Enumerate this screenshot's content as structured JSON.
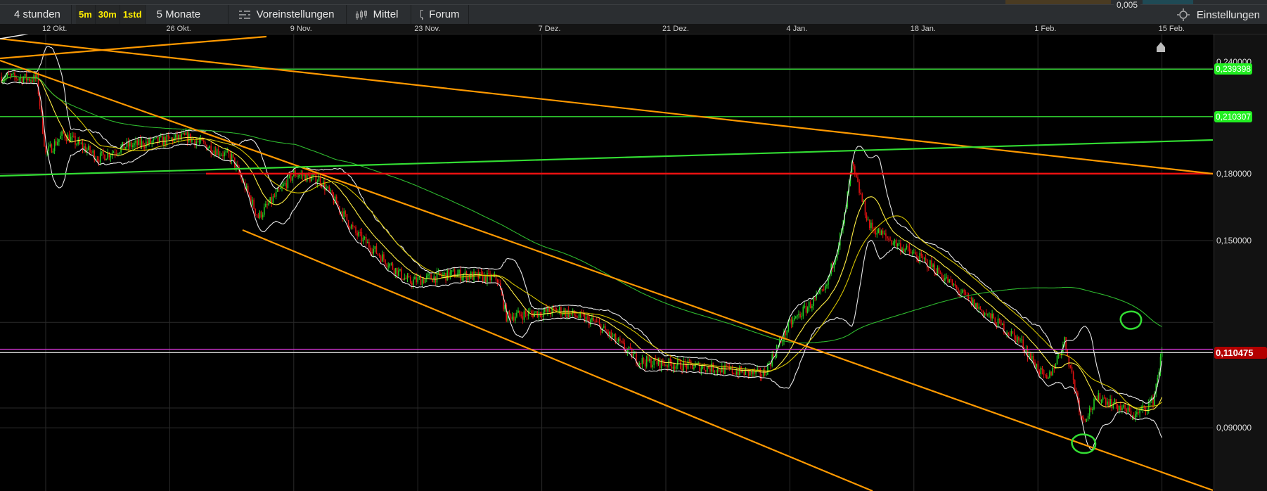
{
  "top_strip": {
    "partial_value": "0,005"
  },
  "toolbar": {
    "interval": "4 stunden",
    "quick_intervals": [
      "5m",
      "30m",
      "1std"
    ],
    "range": "5 Monate",
    "presets_label": "Voreinstellungen",
    "presets_icon": "sliders-icon",
    "indicator_label": "Mittel",
    "indicator_icon": "candlestick-icon",
    "forum_label": "Forum",
    "forum_icon": "speech-bubble-icon",
    "settings_label": "Einstellungen",
    "settings_icon": "gear-icon"
  },
  "chart_data": {
    "type": "candlestick",
    "x_scale": "date",
    "y_scale": "log",
    "x_tick_labels": [
      "12 Okt.",
      "26 Okt.",
      "9 Nov.",
      "23 Nov.",
      "7 Dez.",
      "21 Dez.",
      "4 Jan.",
      "18 Jan.",
      "1 Feb.",
      "15 Feb."
    ],
    "y_tick_labels": [
      "0,240000",
      "0,180000",
      "0,150000",
      "0,090000"
    ],
    "y_ticks": [
      0.24,
      0.18,
      0.15,
      0.09
    ],
    "grid": true,
    "colors": {
      "up": "#22cc22",
      "down": "#dd1111",
      "bands": "#e8e8e8",
      "ma_short": "#d4c200",
      "ma_long": "#2eb82e",
      "trendlines": "#ff9900"
    },
    "price_path": [
      {
        "date": "07.10.",
        "close": 0.2346
      },
      {
        "date": "11.10.",
        "close": 0.233
      },
      {
        "date": "12.10.",
        "close": 0.19
      },
      {
        "date": "14.10.",
        "close": 0.2006
      },
      {
        "date": "18.10.",
        "close": 0.188
      },
      {
        "date": "21.10.",
        "close": 0.194
      },
      {
        "date": "28.10.",
        "close": 0.199
      },
      {
        "date": "02.11.",
        "close": 0.188
      },
      {
        "date": "05.11.",
        "close": 0.16
      },
      {
        "date": "09.11.",
        "close": 0.18
      },
      {
        "date": "12.11.",
        "close": 0.177
      },
      {
        "date": "16.11.",
        "close": 0.153
      },
      {
        "date": "22.11.",
        "close": 0.134
      },
      {
        "date": "27.11.",
        "close": 0.137
      },
      {
        "date": "02.12.",
        "close": 0.135
      },
      {
        "date": "03.12.",
        "close": 0.122
      },
      {
        "date": "09.12.",
        "close": 0.124
      },
      {
        "date": "13.12.",
        "close": 0.12
      },
      {
        "date": "18.12.",
        "close": 0.108
      },
      {
        "date": "26.12.",
        "close": 0.106
      },
      {
        "date": "01.01.",
        "close": 0.104
      },
      {
        "date": "04.01.",
        "close": 0.1195
      },
      {
        "date": "08.01.",
        "close": 0.131
      },
      {
        "date": "10.01.",
        "close": 0.156
      },
      {
        "date": "11.01.",
        "close": 0.184
      },
      {
        "date": "13.01.",
        "close": 0.156
      },
      {
        "date": "15.01.",
        "close": 0.151
      },
      {
        "date": "20.01.",
        "close": 0.14
      },
      {
        "date": "24.01.",
        "close": 0.128
      },
      {
        "date": "30.01.",
        "close": 0.114
      },
      {
        "date": "02.02.",
        "close": 0.102
      },
      {
        "date": "04.02.",
        "close": 0.114
      },
      {
        "date": "06.02.",
        "close": 0.0919
      },
      {
        "date": "08.02.",
        "close": 0.098
      },
      {
        "date": "12.02.",
        "close": 0.093
      },
      {
        "date": "14.02.",
        "close": 0.097
      },
      {
        "date": "15.02.",
        "close": 0.110475
      }
    ],
    "levels": [
      {
        "label": "0,239398",
        "price": 0.239398,
        "color": "#33dd33",
        "tag": true
      },
      {
        "label": "0,210307",
        "price": 0.210307,
        "color": "#33dd33",
        "tag": true
      },
      {
        "label": "",
        "price": 0.18,
        "color": "#ee1111",
        "tag": false
      },
      {
        "label": "",
        "price": 0.1115,
        "color": "#cc33cc",
        "tag": false
      },
      {
        "label": "0,110475",
        "price": 0.110475,
        "color": "#dddddd",
        "tag": true,
        "tag_color": "#b30000"
      }
    ]
  }
}
